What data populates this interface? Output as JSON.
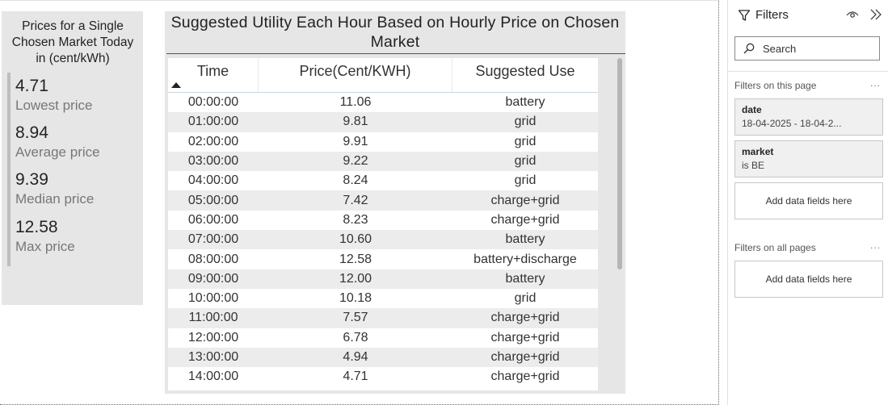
{
  "kpi": {
    "title": "Prices for a Single Chosen Market Today in (cent/kWh)",
    "items": [
      {
        "value": "4.71",
        "label": "Lowest price"
      },
      {
        "value": "8.94",
        "label": "Average price"
      },
      {
        "value": "9.39",
        "label": "Median price"
      },
      {
        "value": "12.58",
        "label": "Max price"
      }
    ]
  },
  "table": {
    "title": "Suggested Utility Each Hour Based on Hourly Price on Chosen Market",
    "columns": [
      "Time",
      "Price(Cent/KWH)",
      "Suggested Use"
    ],
    "rows": [
      [
        "00:00:00",
        "11.06",
        "battery"
      ],
      [
        "01:00:00",
        "9.81",
        "grid"
      ],
      [
        "02:00:00",
        "9.91",
        "grid"
      ],
      [
        "03:00:00",
        "9.22",
        "grid"
      ],
      [
        "04:00:00",
        "8.24",
        "grid"
      ],
      [
        "05:00:00",
        "7.42",
        "charge+grid"
      ],
      [
        "06:00:00",
        "8.23",
        "charge+grid"
      ],
      [
        "07:00:00",
        "10.60",
        "battery"
      ],
      [
        "08:00:00",
        "12.58",
        "battery+discharge"
      ],
      [
        "09:00:00",
        "12.00",
        "battery"
      ],
      [
        "10:00:00",
        "10.18",
        "grid"
      ],
      [
        "11:00:00",
        "7.57",
        "charge+grid"
      ],
      [
        "12:00:00",
        "6.78",
        "charge+grid"
      ],
      [
        "13:00:00",
        "4.94",
        "charge+grid"
      ],
      [
        "14:00:00",
        "4.71",
        "charge+grid"
      ]
    ]
  },
  "filters": {
    "title": "Filters",
    "search_placeholder": "Search",
    "on_page_label": "Filters on this page",
    "on_all_label": "Filters on all pages",
    "more": "...",
    "cards": [
      {
        "name": "date",
        "value": "18-04-2025 - 18-04-2..."
      },
      {
        "name": "market",
        "value": "is BE"
      }
    ],
    "add_fields": "Add data fields here"
  }
}
